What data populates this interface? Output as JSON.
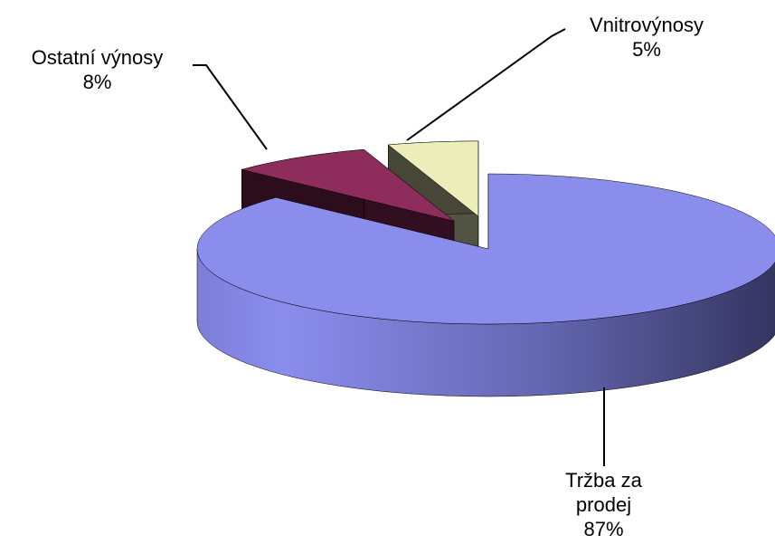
{
  "chart_data": {
    "type": "pie",
    "categories": [
      "Tržba za prodej",
      "Ostatní výnosy",
      "Vnitrovýnosy"
    ],
    "values": [
      87,
      8,
      5
    ],
    "value_labels": [
      "87%",
      "8%",
      "5%"
    ],
    "colors": [
      "#8b8ded",
      "#8e2c5c",
      "#eeeebb"
    ]
  }
}
